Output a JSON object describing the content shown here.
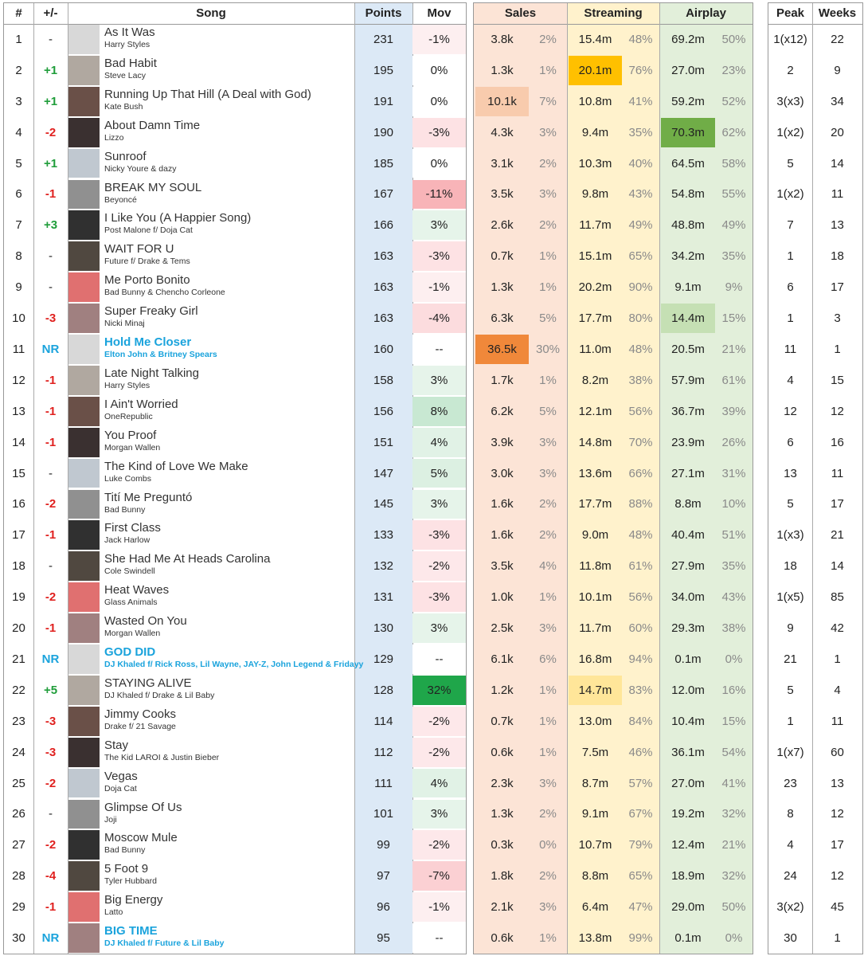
{
  "table": {
    "headers": [
      "#",
      "+/-",
      "Song",
      "Points",
      "Mov",
      "Sales",
      "Streaming",
      "Airplay",
      "Peak",
      "Weeks"
    ],
    "rows": [
      [
        1,
        "-",
        "As It Was",
        "Harry Styles",
        231,
        "-1%",
        "3.8k",
        "2%",
        "15.4m",
        "48%",
        "69.2m",
        "50%",
        "1(x12)",
        22
      ],
      [
        2,
        "+1",
        "Bad Habit",
        "Steve Lacy",
        195,
        "0%",
        "1.3k",
        "1%",
        "20.1m",
        "76%",
        "27.0m",
        "23%",
        2,
        9
      ],
      [
        3,
        "+1",
        "Running Up That Hill (A Deal with God)",
        "Kate Bush",
        191,
        "0%",
        "10.1k",
        "7%",
        "10.8m",
        "41%",
        "59.2m",
        "52%",
        "3(x3)",
        34
      ],
      [
        4,
        "-2",
        "About Damn Time",
        "Lizzo",
        190,
        "-3%",
        "4.3k",
        "3%",
        "9.4m",
        "35%",
        "70.3m",
        "62%",
        "1(x2)",
        20
      ],
      [
        5,
        "+1",
        "Sunroof",
        "Nicky Youre & dazy",
        185,
        "0%",
        "3.1k",
        "2%",
        "10.3m",
        "40%",
        "64.5m",
        "58%",
        5,
        14
      ],
      [
        6,
        "-1",
        "BREAK MY SOUL",
        "Beyoncé",
        167,
        "-11%",
        "3.5k",
        "3%",
        "9.8m",
        "43%",
        "54.8m",
        "55%",
        "1(x2)",
        11
      ],
      [
        7,
        "+3",
        "I Like You (A Happier Song)",
        "Post Malone f/ Doja Cat",
        166,
        "3%",
        "2.6k",
        "2%",
        "11.7m",
        "49%",
        "48.8m",
        "49%",
        7,
        13
      ],
      [
        8,
        "-",
        "WAIT FOR U",
        "Future f/ Drake & Tems",
        163,
        "-3%",
        "0.7k",
        "1%",
        "15.1m",
        "65%",
        "34.2m",
        "35%",
        1,
        18
      ],
      [
        9,
        "-",
        "Me Porto Bonito",
        "Bad Bunny & Chencho Corleone",
        163,
        "-1%",
        "1.3k",
        "1%",
        "20.2m",
        "90%",
        "9.1m",
        "9%",
        6,
        17
      ],
      [
        10,
        "-3",
        "Super Freaky Girl",
        "Nicki Minaj",
        163,
        "-4%",
        "6.3k",
        "5%",
        "17.7m",
        "80%",
        "14.4m",
        "15%",
        1,
        3
      ],
      [
        11,
        "NR",
        "Hold Me Closer",
        "Elton John & Britney Spears",
        160,
        "--",
        "36.5k",
        "30%",
        "11.0m",
        "48%",
        "20.5m",
        "21%",
        11,
        1
      ],
      [
        12,
        "-1",
        "Late Night Talking",
        "Harry Styles",
        158,
        "3%",
        "1.7k",
        "1%",
        "8.2m",
        "38%",
        "57.9m",
        "61%",
        4,
        15
      ],
      [
        13,
        "-1",
        "I Ain't Worried",
        "OneRepublic",
        156,
        "8%",
        "6.2k",
        "5%",
        "12.1m",
        "56%",
        "36.7m",
        "39%",
        12,
        12
      ],
      [
        14,
        "-1",
        "You Proof",
        "Morgan Wallen",
        151,
        "4%",
        "3.9k",
        "3%",
        "14.8m",
        "70%",
        "23.9m",
        "26%",
        6,
        16
      ],
      [
        15,
        "-",
        "The Kind of Love We Make",
        "Luke Combs",
        147,
        "5%",
        "3.0k",
        "3%",
        "13.6m",
        "66%",
        "27.1m",
        "31%",
        13,
        11
      ],
      [
        16,
        "-2",
        "Tití Me Preguntó",
        "Bad Bunny",
        145,
        "3%",
        "1.6k",
        "2%",
        "17.7m",
        "88%",
        "8.8m",
        "10%",
        5,
        17
      ],
      [
        17,
        "-1",
        "First Class",
        "Jack Harlow",
        133,
        "-3%",
        "1.6k",
        "2%",
        "9.0m",
        "48%",
        "40.4m",
        "51%",
        "1(x3)",
        21
      ],
      [
        18,
        "-",
        "She Had Me At Heads Carolina",
        "Cole Swindell",
        132,
        "-2%",
        "3.5k",
        "4%",
        "11.8m",
        "61%",
        "27.9m",
        "35%",
        18,
        14
      ],
      [
        19,
        "-2",
        "Heat Waves",
        "Glass Animals",
        131,
        "-3%",
        "1.0k",
        "1%",
        "10.1m",
        "56%",
        "34.0m",
        "43%",
        "1(x5)",
        85
      ],
      [
        20,
        "-1",
        "Wasted On You",
        "Morgan Wallen",
        130,
        "3%",
        "2.5k",
        "3%",
        "11.7m",
        "60%",
        "29.3m",
        "38%",
        9,
        42
      ],
      [
        21,
        "NR",
        "GOD DID",
        "DJ Khaled f/ Rick Ross, Lil Wayne, JAY-Z, John Legend & Fridayy",
        129,
        "--",
        "6.1k",
        "6%",
        "16.8m",
        "94%",
        "0.1m",
        "0%",
        21,
        1
      ],
      [
        22,
        "+5",
        "STAYING ALIVE",
        "DJ Khaled f/ Drake & Lil Baby",
        128,
        "32%",
        "1.2k",
        "1%",
        "14.7m",
        "83%",
        "12.0m",
        "16%",
        5,
        4
      ],
      [
        23,
        "-3",
        "Jimmy Cooks",
        "Drake f/ 21 Savage",
        114,
        "-2%",
        "0.7k",
        "1%",
        "13.0m",
        "84%",
        "10.4m",
        "15%",
        1,
        11
      ],
      [
        24,
        "-3",
        "Stay",
        "The Kid LAROI & Justin Bieber",
        112,
        "-2%",
        "0.6k",
        "1%",
        "7.5m",
        "46%",
        "36.1m",
        "54%",
        "1(x7)",
        60
      ],
      [
        25,
        "-2",
        "Vegas",
        "Doja Cat",
        111,
        "4%",
        "2.3k",
        "3%",
        "8.7m",
        "57%",
        "27.0m",
        "41%",
        23,
        13
      ],
      [
        26,
        "-",
        "Glimpse Of Us",
        "Joji",
        101,
        "3%",
        "1.3k",
        "2%",
        "9.1m",
        "67%",
        "19.2m",
        "32%",
        8,
        12
      ],
      [
        27,
        "-2",
        "Moscow Mule",
        "Bad Bunny",
        99,
        "-2%",
        "0.3k",
        "0%",
        "10.7m",
        "79%",
        "12.4m",
        "21%",
        4,
        17
      ],
      [
        28,
        "-4",
        "5 Foot 9",
        "Tyler Hubbard",
        97,
        "-7%",
        "1.8k",
        "2%",
        "8.8m",
        "65%",
        "18.9m",
        "32%",
        24,
        12
      ],
      [
        29,
        "-1",
        "Big Energy",
        "Latto",
        96,
        "-1%",
        "2.1k",
        "3%",
        "6.4m",
        "47%",
        "29.0m",
        "50%",
        "3(x2)",
        45
      ],
      [
        30,
        "NR",
        "BIG TIME",
        "DJ Khaled f/ Future & Lil Baby",
        95,
        "--",
        "0.6k",
        "1%",
        "13.8m",
        "99%",
        "0.1m",
        "0%",
        30,
        1
      ]
    ],
    "mov_colors": [
      "#fdeff0",
      "#ffffff",
      "#ffffff",
      "#fde2e4",
      "#ffffff",
      "#f8b4b8",
      "#e6f4ea",
      "#fde2e4",
      "#fdeff0",
      "#fcdcde",
      "#ffffff",
      "#e6f4ea",
      "#c8e8d2",
      "#e1f2e6",
      "#dcf0e2",
      "#e6f4ea",
      "#fde2e4",
      "#fde8ea",
      "#fde2e4",
      "#e6f4ea",
      "#ffffff",
      "#1fa64a",
      "#fde8ea",
      "#fde8ea",
      "#e1f2e6",
      "#e6f4ea",
      "#fde8ea",
      "#fbd0d3",
      "#fdeff0",
      "#ffffff"
    ],
    "highlights": [
      [
        2,
        6,
        "#f8cbad"
      ],
      [
        10,
        6,
        "#f0883a"
      ],
      [
        1,
        8,
        "#ffc000"
      ],
      [
        21,
        8,
        "#ffe699"
      ],
      [
        3,
        10,
        "#70ad47"
      ],
      [
        9,
        10,
        "#c5e0b4"
      ]
    ]
  }
}
